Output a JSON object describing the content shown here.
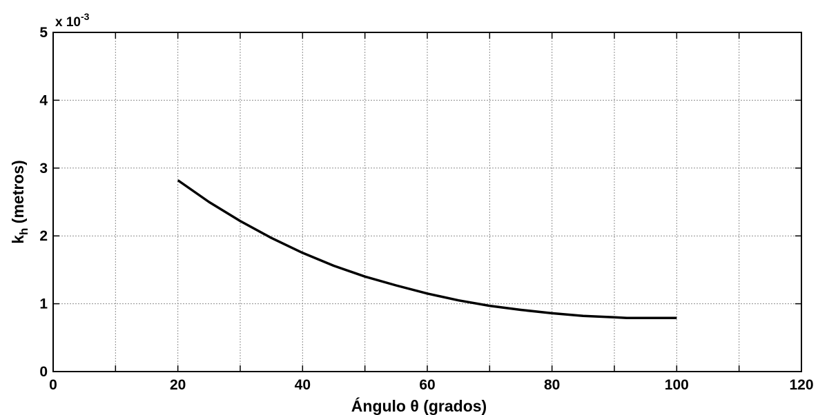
{
  "chart_data": {
    "type": "line",
    "title": "",
    "xlabel": "Ángulo θ (grados)",
    "ylabel_main": "k",
    "ylabel_sub": "h",
    "ylabel_unit": " (metros)",
    "y_multiplier_base": "x 10",
    "y_multiplier_exp": "-3",
    "xlim": [
      0,
      120
    ],
    "ylim": [
      0,
      5
    ],
    "x_ticks": [
      0,
      20,
      40,
      60,
      80,
      100,
      120
    ],
    "y_ticks": [
      0,
      1,
      2,
      3,
      4,
      5
    ],
    "x_grid": [
      0,
      10,
      20,
      30,
      40,
      50,
      60,
      70,
      80,
      90,
      100,
      110,
      120
    ],
    "grid": true,
    "series": [
      {
        "color": "#000000",
        "x": [
          20,
          25,
          30,
          35,
          40,
          45,
          50,
          55,
          60,
          65,
          70,
          75,
          80,
          85,
          90,
          92,
          95,
          100
        ],
        "y": [
          2.82,
          2.5,
          2.22,
          1.97,
          1.75,
          1.56,
          1.4,
          1.27,
          1.15,
          1.05,
          0.97,
          0.91,
          0.86,
          0.82,
          0.8,
          0.79,
          0.79,
          0.79
        ]
      }
    ]
  }
}
